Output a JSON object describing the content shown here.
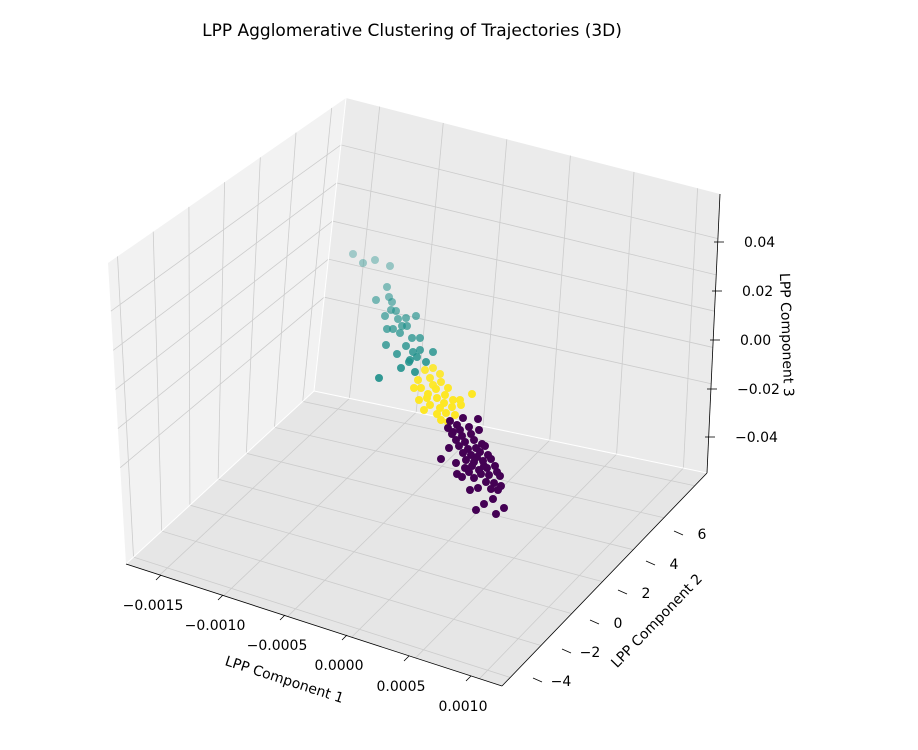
{
  "chart_data": {
    "type": "scatter",
    "projection": "3d",
    "title": "LPP Agglomerative Clustering of Trajectories (3D)",
    "xlabel": "LPP Component 1",
    "ylabel": "LPP Component 2",
    "zlabel": "LPP Component 3",
    "xlim": [
      -0.0017,
      0.0012
    ],
    "ylim": [
      -5,
      8
    ],
    "zlim": [
      -0.055,
      0.055
    ],
    "grid": true,
    "legend": "none",
    "x_ticks": [
      "−0.0015",
      "−0.0010",
      "−0.0005",
      "0.0000",
      "0.0005",
      "0.0010"
    ],
    "y_ticks": [
      "−4",
      "−2",
      "0",
      "2",
      "4",
      "6"
    ],
    "z_ticks": [
      "−0.04",
      "−0.02",
      "0.00",
      "0.02",
      "0.04"
    ],
    "colors": {
      "pane": "#f2f2f2",
      "pane_side": "#ebebeb",
      "grid": "#cccccc",
      "cluster_0": "#440154",
      "cluster_1": "#21918c",
      "cluster_2": "#fde725"
    },
    "series": [
      {
        "cluster": 1,
        "color": "#21918c",
        "points": [
          [
            353,
            254
          ],
          [
            363,
            263
          ],
          [
            375,
            260
          ],
          [
            390,
            266
          ],
          [
            387,
            287
          ],
          [
            376,
            300
          ],
          [
            389,
            297
          ],
          [
            392,
            302
          ],
          [
            391,
            310
          ],
          [
            385,
            316
          ],
          [
            396,
            311
          ],
          [
            398,
            319
          ],
          [
            406,
            318
          ],
          [
            416,
            316
          ],
          [
            402,
            326
          ],
          [
            393,
            329
          ],
          [
            387,
            329
          ],
          [
            400,
            333
          ],
          [
            407,
            326
          ],
          [
            412,
            338
          ],
          [
            420,
            338
          ],
          [
            386,
            345
          ],
          [
            397,
            354
          ],
          [
            406,
            346
          ],
          [
            413,
            352
          ],
          [
            417,
            357
          ],
          [
            410,
            360
          ],
          [
            401,
            368
          ],
          [
            409,
            362
          ],
          [
            420,
            350
          ],
          [
            433,
            352
          ],
          [
            426,
            362
          ],
          [
            415,
            372
          ],
          [
            379,
            378
          ]
        ]
      },
      {
        "cluster": 2,
        "color": "#fde725",
        "points": [
          [
            425,
            370
          ],
          [
            433,
            368
          ],
          [
            440,
            374
          ],
          [
            430,
            378
          ],
          [
            418,
            380
          ],
          [
            421,
            388
          ],
          [
            433,
            385
          ],
          [
            441,
            382
          ],
          [
            448,
            388
          ],
          [
            428,
            394
          ],
          [
            419,
            400
          ],
          [
            437,
            398
          ],
          [
            445,
            395
          ],
          [
            453,
            400
          ],
          [
            472,
            394
          ],
          [
            430,
            405
          ],
          [
            440,
            408
          ],
          [
            452,
            407
          ],
          [
            461,
            405
          ],
          [
            446,
            413
          ],
          [
            455,
            415
          ],
          [
            437,
            414
          ],
          [
            424,
            410
          ],
          [
            414,
            388
          ],
          [
            441,
            420
          ],
          [
            448,
            422
          ],
          [
            460,
            400
          ],
          [
            436,
            389
          ],
          [
            427,
            398
          ],
          [
            444,
            403
          ]
        ]
      },
      {
        "cluster": 0,
        "color": "#440154",
        "points": [
          [
            463,
            418
          ],
          [
            478,
            419
          ],
          [
            450,
            421
          ],
          [
            457,
            425
          ],
          [
            448,
            428
          ],
          [
            460,
            430
          ],
          [
            469,
            427
          ],
          [
            453,
            432
          ],
          [
            462,
            436
          ],
          [
            471,
            434
          ],
          [
            479,
            430
          ],
          [
            456,
            440
          ],
          [
            465,
            442
          ],
          [
            474,
            440
          ],
          [
            482,
            444
          ],
          [
            459,
            446
          ],
          [
            468,
            449
          ],
          [
            476,
            448
          ],
          [
            485,
            446
          ],
          [
            463,
            453
          ],
          [
            471,
            455
          ],
          [
            480,
            452
          ],
          [
            488,
            455
          ],
          [
            466,
            460
          ],
          [
            474,
            462
          ],
          [
            483,
            461
          ],
          [
            491,
            459
          ],
          [
            441,
            459
          ],
          [
            456,
            463
          ],
          [
            465,
            468
          ],
          [
            472,
            466
          ],
          [
            479,
            470
          ],
          [
            487,
            468
          ],
          [
            495,
            466
          ],
          [
            497,
            472
          ],
          [
            469,
            472
          ],
          [
            481,
            474
          ],
          [
            489,
            475
          ],
          [
            500,
            476
          ],
          [
            457,
            474
          ],
          [
            462,
            477
          ],
          [
            474,
            478
          ],
          [
            486,
            482
          ],
          [
            494,
            483
          ],
          [
            501,
            486
          ],
          [
            470,
            490
          ],
          [
            478,
            488
          ],
          [
            491,
            489
          ],
          [
            498,
            490
          ],
          [
            493,
            499
          ],
          [
            484,
            504
          ],
          [
            476,
            510
          ],
          [
            504,
            508
          ],
          [
            496,
            514
          ],
          [
            449,
            448
          ],
          [
            477,
            457
          ],
          [
            452,
            434
          ],
          [
            484,
            466
          ]
        ]
      }
    ]
  }
}
